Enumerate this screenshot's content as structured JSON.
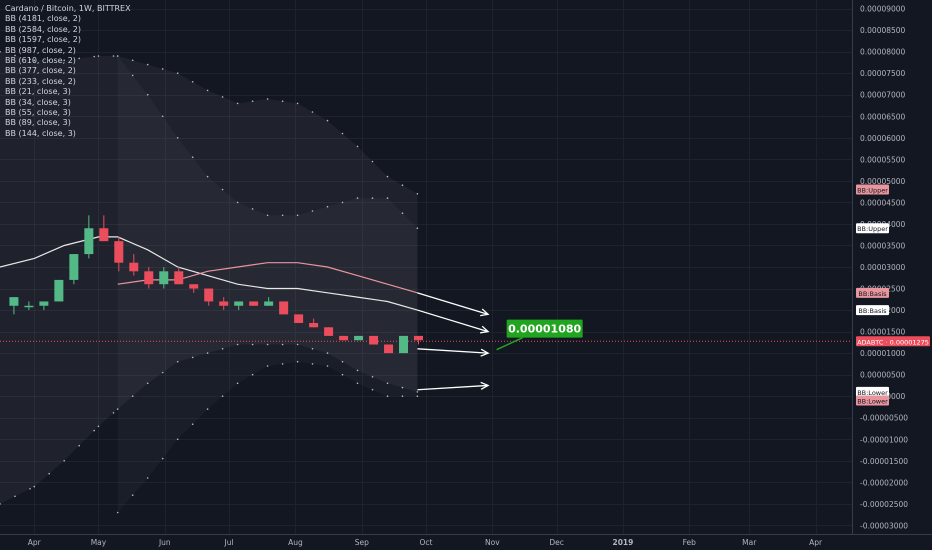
{
  "header": {
    "title": "Cardano / Bitcoin, 1W, BITTREX"
  },
  "indicators": [
    "BB (4181, close, 2)",
    "BB (2584, close, 2)",
    "BB (1597, close, 2)",
    "BB (987, close, 2)",
    "BB (610, close, 2)",
    "BB (377, close, 2)",
    "BB (233, close, 2)",
    "BB (21, close, 3)",
    "BB (34, close, 3)",
    "BB (55, close, 3)",
    "BB (89, close, 3)",
    "BB (144, close, 3)"
  ],
  "colors": {
    "background": "#131722",
    "up": "#53b987",
    "down": "#eb4d5c",
    "basis_white": "#e8e8e8",
    "basis_pink": "#e8959e",
    "target": "#21a520",
    "price_line": "#eb4d5c"
  },
  "chart_data": {
    "type": "candlestick",
    "y_axis": {
      "range": [
        -3.2e-06,
        9.2e-06
      ],
      "ticks": [
        "0.00009000",
        "0.00008500",
        "0.00008000",
        "0.00007500",
        "0.00007000",
        "0.00006500",
        "0.00006000",
        "0.00005500",
        "0.00005000",
        "0.00004500",
        "0.00004000",
        "0.00003500",
        "0.00003000",
        "0.00002500",
        "0.00002000",
        "0.00001500",
        "0.00001000",
        "0.00000500",
        "0.00000000",
        "-0.00000500",
        "-0.00001000",
        "-0.00001500",
        "-0.00002000",
        "-0.00002500",
        "-0.00003000"
      ],
      "tick_values": [
        9e-06,
        8.5e-06,
        8e-06,
        7.5e-06,
        7e-06,
        6.5e-06,
        6e-06,
        5.5e-06,
        5e-06,
        4.5e-06,
        4e-06,
        3.5e-06,
        3e-06,
        2.5e-06,
        2e-06,
        1.5e-06,
        1e-06,
        5e-07,
        0,
        -5e-07,
        -1e-06,
        -1.5e-06,
        -2e-06,
        -2.5e-06,
        -3e-06
      ]
    },
    "x_axis": {
      "labels": [
        "Apr",
        "May",
        "Jun",
        "Jul",
        "Aug",
        "Sep",
        "Oct",
        "Nov",
        "Dec",
        "2019",
        "Feb",
        "Mar",
        "Apr"
      ],
      "label_dates": [
        "2018-04-01",
        "2018-05-01",
        "2018-06-01",
        "2018-07-01",
        "2018-08-01",
        "2018-09-01",
        "2018-10-01",
        "2018-11-01",
        "2018-12-01",
        "2019-01-01",
        "2019-02-01",
        "2019-03-01",
        "2019-04-01"
      ],
      "range": [
        "2018-03-16",
        "2019-04-18"
      ]
    },
    "candles": [
      {
        "date": "2018-03-19",
        "open": 2.1e-06,
        "high": 2.3e-06,
        "low": 1.9e-06,
        "close": 2.3e-06
      },
      {
        "date": "2018-03-26",
        "open": 2.1e-06,
        "high": 2.2e-06,
        "low": 2e-06,
        "close": 2.1e-06
      },
      {
        "date": "2018-04-02",
        "open": 2.1e-06,
        "high": 2.2e-06,
        "low": 2e-06,
        "close": 2.2e-06
      },
      {
        "date": "2018-04-09",
        "open": 2.2e-06,
        "high": 2.7e-06,
        "low": 2.2e-06,
        "close": 2.7e-06
      },
      {
        "date": "2018-04-16",
        "open": 2.7e-06,
        "high": 3.3e-06,
        "low": 2.6e-06,
        "close": 3.3e-06
      },
      {
        "date": "2018-04-23",
        "open": 3.3e-06,
        "high": 4.2e-06,
        "low": 3.2e-06,
        "close": 3.9e-06
      },
      {
        "date": "2018-04-30",
        "open": 3.9e-06,
        "high": 4.2e-06,
        "low": 3.6e-06,
        "close": 3.6e-06
      },
      {
        "date": "2018-05-07",
        "open": 3.6e-06,
        "high": 3.7e-06,
        "low": 2.9e-06,
        "close": 3.1e-06
      },
      {
        "date": "2018-05-14",
        "open": 3.1e-06,
        "high": 3.3e-06,
        "low": 2.8e-06,
        "close": 2.9e-06
      },
      {
        "date": "2018-05-21",
        "open": 2.9e-06,
        "high": 3e-06,
        "low": 2.5e-06,
        "close": 2.6e-06
      },
      {
        "date": "2018-05-28",
        "open": 2.6e-06,
        "high": 3e-06,
        "low": 2.5e-06,
        "close": 2.9e-06
      },
      {
        "date": "2018-06-04",
        "open": 2.9e-06,
        "high": 3e-06,
        "low": 2.6e-06,
        "close": 2.6e-06
      },
      {
        "date": "2018-06-11",
        "open": 2.6e-06,
        "high": 2.6e-06,
        "low": 2.4e-06,
        "close": 2.5e-06
      },
      {
        "date": "2018-06-18",
        "open": 2.5e-06,
        "high": 2.5e-06,
        "low": 2.1e-06,
        "close": 2.2e-06
      },
      {
        "date": "2018-06-25",
        "open": 2.2e-06,
        "high": 2.3e-06,
        "low": 2e-06,
        "close": 2.1e-06
      },
      {
        "date": "2018-07-02",
        "open": 2.1e-06,
        "high": 2.2e-06,
        "low": 2e-06,
        "close": 2.2e-06
      },
      {
        "date": "2018-07-09",
        "open": 2.2e-06,
        "high": 2.2e-06,
        "low": 2.1e-06,
        "close": 2.1e-06
      },
      {
        "date": "2018-07-16",
        "open": 2.1e-06,
        "high": 2.3e-06,
        "low": 2.1e-06,
        "close": 2.2e-06
      },
      {
        "date": "2018-07-23",
        "open": 2.2e-06,
        "high": 2.2e-06,
        "low": 1.9e-06,
        "close": 1.9e-06
      },
      {
        "date": "2018-07-30",
        "open": 1.9e-06,
        "high": 1.9e-06,
        "low": 1.7e-06,
        "close": 1.7e-06
      },
      {
        "date": "2018-08-06",
        "open": 1.7e-06,
        "high": 1.8e-06,
        "low": 1.6e-06,
        "close": 1.6e-06
      },
      {
        "date": "2018-08-13",
        "open": 1.6e-06,
        "high": 1.6e-06,
        "low": 1.4e-06,
        "close": 1.4e-06
      },
      {
        "date": "2018-08-20",
        "open": 1.4e-06,
        "high": 1.4e-06,
        "low": 1.3e-06,
        "close": 1.3e-06
      },
      {
        "date": "2018-08-27",
        "open": 1.3e-06,
        "high": 1.4e-06,
        "low": 1.3e-06,
        "close": 1.4e-06
      },
      {
        "date": "2018-09-03",
        "open": 1.4e-06,
        "high": 1.4e-06,
        "low": 1.2e-06,
        "close": 1.2e-06
      },
      {
        "date": "2018-09-10",
        "open": 1.2e-06,
        "high": 1.2e-06,
        "low": 1e-06,
        "close": 1e-06
      },
      {
        "date": "2018-09-17",
        "open": 1e-06,
        "high": 1.4e-06,
        "low": 1e-06,
        "close": 1.4e-06
      },
      {
        "date": "2018-09-24",
        "open": 1.4e-06,
        "high": 1.4e-06,
        "low": 1.2e-06,
        "close": 1.3e-06
      }
    ],
    "basis_white": {
      "dates": [
        "2018-03-16",
        "2018-04-01",
        "2018-04-15",
        "2018-05-01",
        "2018-05-10",
        "2018-05-24",
        "2018-06-07",
        "2018-06-21",
        "2018-07-05",
        "2018-07-19",
        "2018-08-02",
        "2018-08-16",
        "2018-08-30",
        "2018-09-13",
        "2018-09-27"
      ],
      "values": [
        3e-06,
        3.2e-06,
        3.5e-06,
        3.7e-06,
        3.7e-06,
        3.4e-06,
        3e-06,
        2.8e-06,
        2.6e-06,
        2.5e-06,
        2.5e-06,
        2.4e-06,
        2.3e-06,
        2.2e-06,
        2e-06
      ]
    },
    "basis_pink": {
      "dates": [
        "2018-05-10",
        "2018-05-24",
        "2018-06-07",
        "2018-06-21",
        "2018-07-05",
        "2018-07-19",
        "2018-08-02",
        "2018-08-16",
        "2018-08-30",
        "2018-09-13",
        "2018-09-27"
      ],
      "values": [
        2.6e-06,
        2.7e-06,
        2.7e-06,
        2.9e-06,
        3e-06,
        3.1e-06,
        3.1e-06,
        3e-06,
        2.8e-06,
        2.6e-06,
        2.4e-06
      ]
    },
    "band_outer": {
      "dates": [
        "2018-03-16",
        "2018-04-01",
        "2018-04-15",
        "2018-05-01",
        "2018-05-10",
        "2018-05-24",
        "2018-06-07",
        "2018-06-21",
        "2018-07-05",
        "2018-07-19",
        "2018-08-02",
        "2018-08-16",
        "2018-08-30",
        "2018-09-13",
        "2018-09-27"
      ],
      "upper": [
        8e-06,
        7.8e-06,
        7.8e-06,
        7.9e-06,
        7.9e-06,
        7.7e-06,
        7.5e-06,
        7.1e-06,
        6.8e-06,
        6.9e-06,
        6.8e-06,
        6.4e-06,
        5.8e-06,
        5.1e-06,
        4.7e-06
      ],
      "lower": [
        -2.5e-06,
        -2.1e-06,
        -1.5e-06,
        -7e-07,
        -3e-07,
        3e-07,
        8e-07,
        1e-06,
        1.2e-06,
        1.2e-06,
        1.2e-06,
        1e-06,
        6e-07,
        3e-07,
        1e-07
      ]
    },
    "band_inner": {
      "dates": [
        "2018-05-10",
        "2018-05-24",
        "2018-06-07",
        "2018-06-21",
        "2018-07-05",
        "2018-07-19",
        "2018-08-02",
        "2018-08-16",
        "2018-08-30",
        "2018-09-13",
        "2018-09-27"
      ],
      "upper": [
        7.9e-06,
        7e-06,
        6e-06,
        5.1e-06,
        4.5e-06,
        4.2e-06,
        4.2e-06,
        4.4e-06,
        4.6e-06,
        4.6e-06,
        3.9e-06
      ],
      "lower": [
        -2.7e-06,
        -1.9e-06,
        -1e-06,
        -3e-07,
        3e-07,
        7e-07,
        8e-07,
        7e-07,
        3e-07,
        0.0,
        0.0
      ]
    },
    "projections": [
      {
        "from_date": "2018-09-27",
        "from": 2.4e-06,
        "to_date": "2018-10-30",
        "to": 1.9e-06
      },
      {
        "from_date": "2018-09-27",
        "from": 2e-06,
        "to_date": "2018-10-30",
        "to": 1.5e-06
      },
      {
        "from_date": "2018-09-27",
        "from": 1.1e-06,
        "to_date": "2018-10-30",
        "to": 1e-06
      },
      {
        "from_date": "2018-09-27",
        "from": 1.5e-07,
        "to_date": "2018-10-30",
        "to": 2.5e-07
      }
    ],
    "target": {
      "label": "0.00001080",
      "date": "2018-11-03",
      "value": 1.08e-06
    },
    "current_price": {
      "label": "ADABTC · 0.00001275",
      "value": 1.275e-06
    },
    "axis_labels": [
      {
        "text": "BB:Upper",
        "value": 4.8e-06,
        "style": "pink"
      },
      {
        "text": "BB:Upper",
        "value": 3.9e-06,
        "style": "white"
      },
      {
        "text": "BB:Basis",
        "value": 2.4e-06,
        "style": "pink"
      },
      {
        "text": "BB:Basis",
        "value": 2e-06,
        "style": "white"
      },
      {
        "text": "BB:Lower",
        "value": 1e-07,
        "style": "white"
      },
      {
        "text": "BB:Lower",
        "value": -1e-07,
        "style": "pink"
      }
    ]
  }
}
